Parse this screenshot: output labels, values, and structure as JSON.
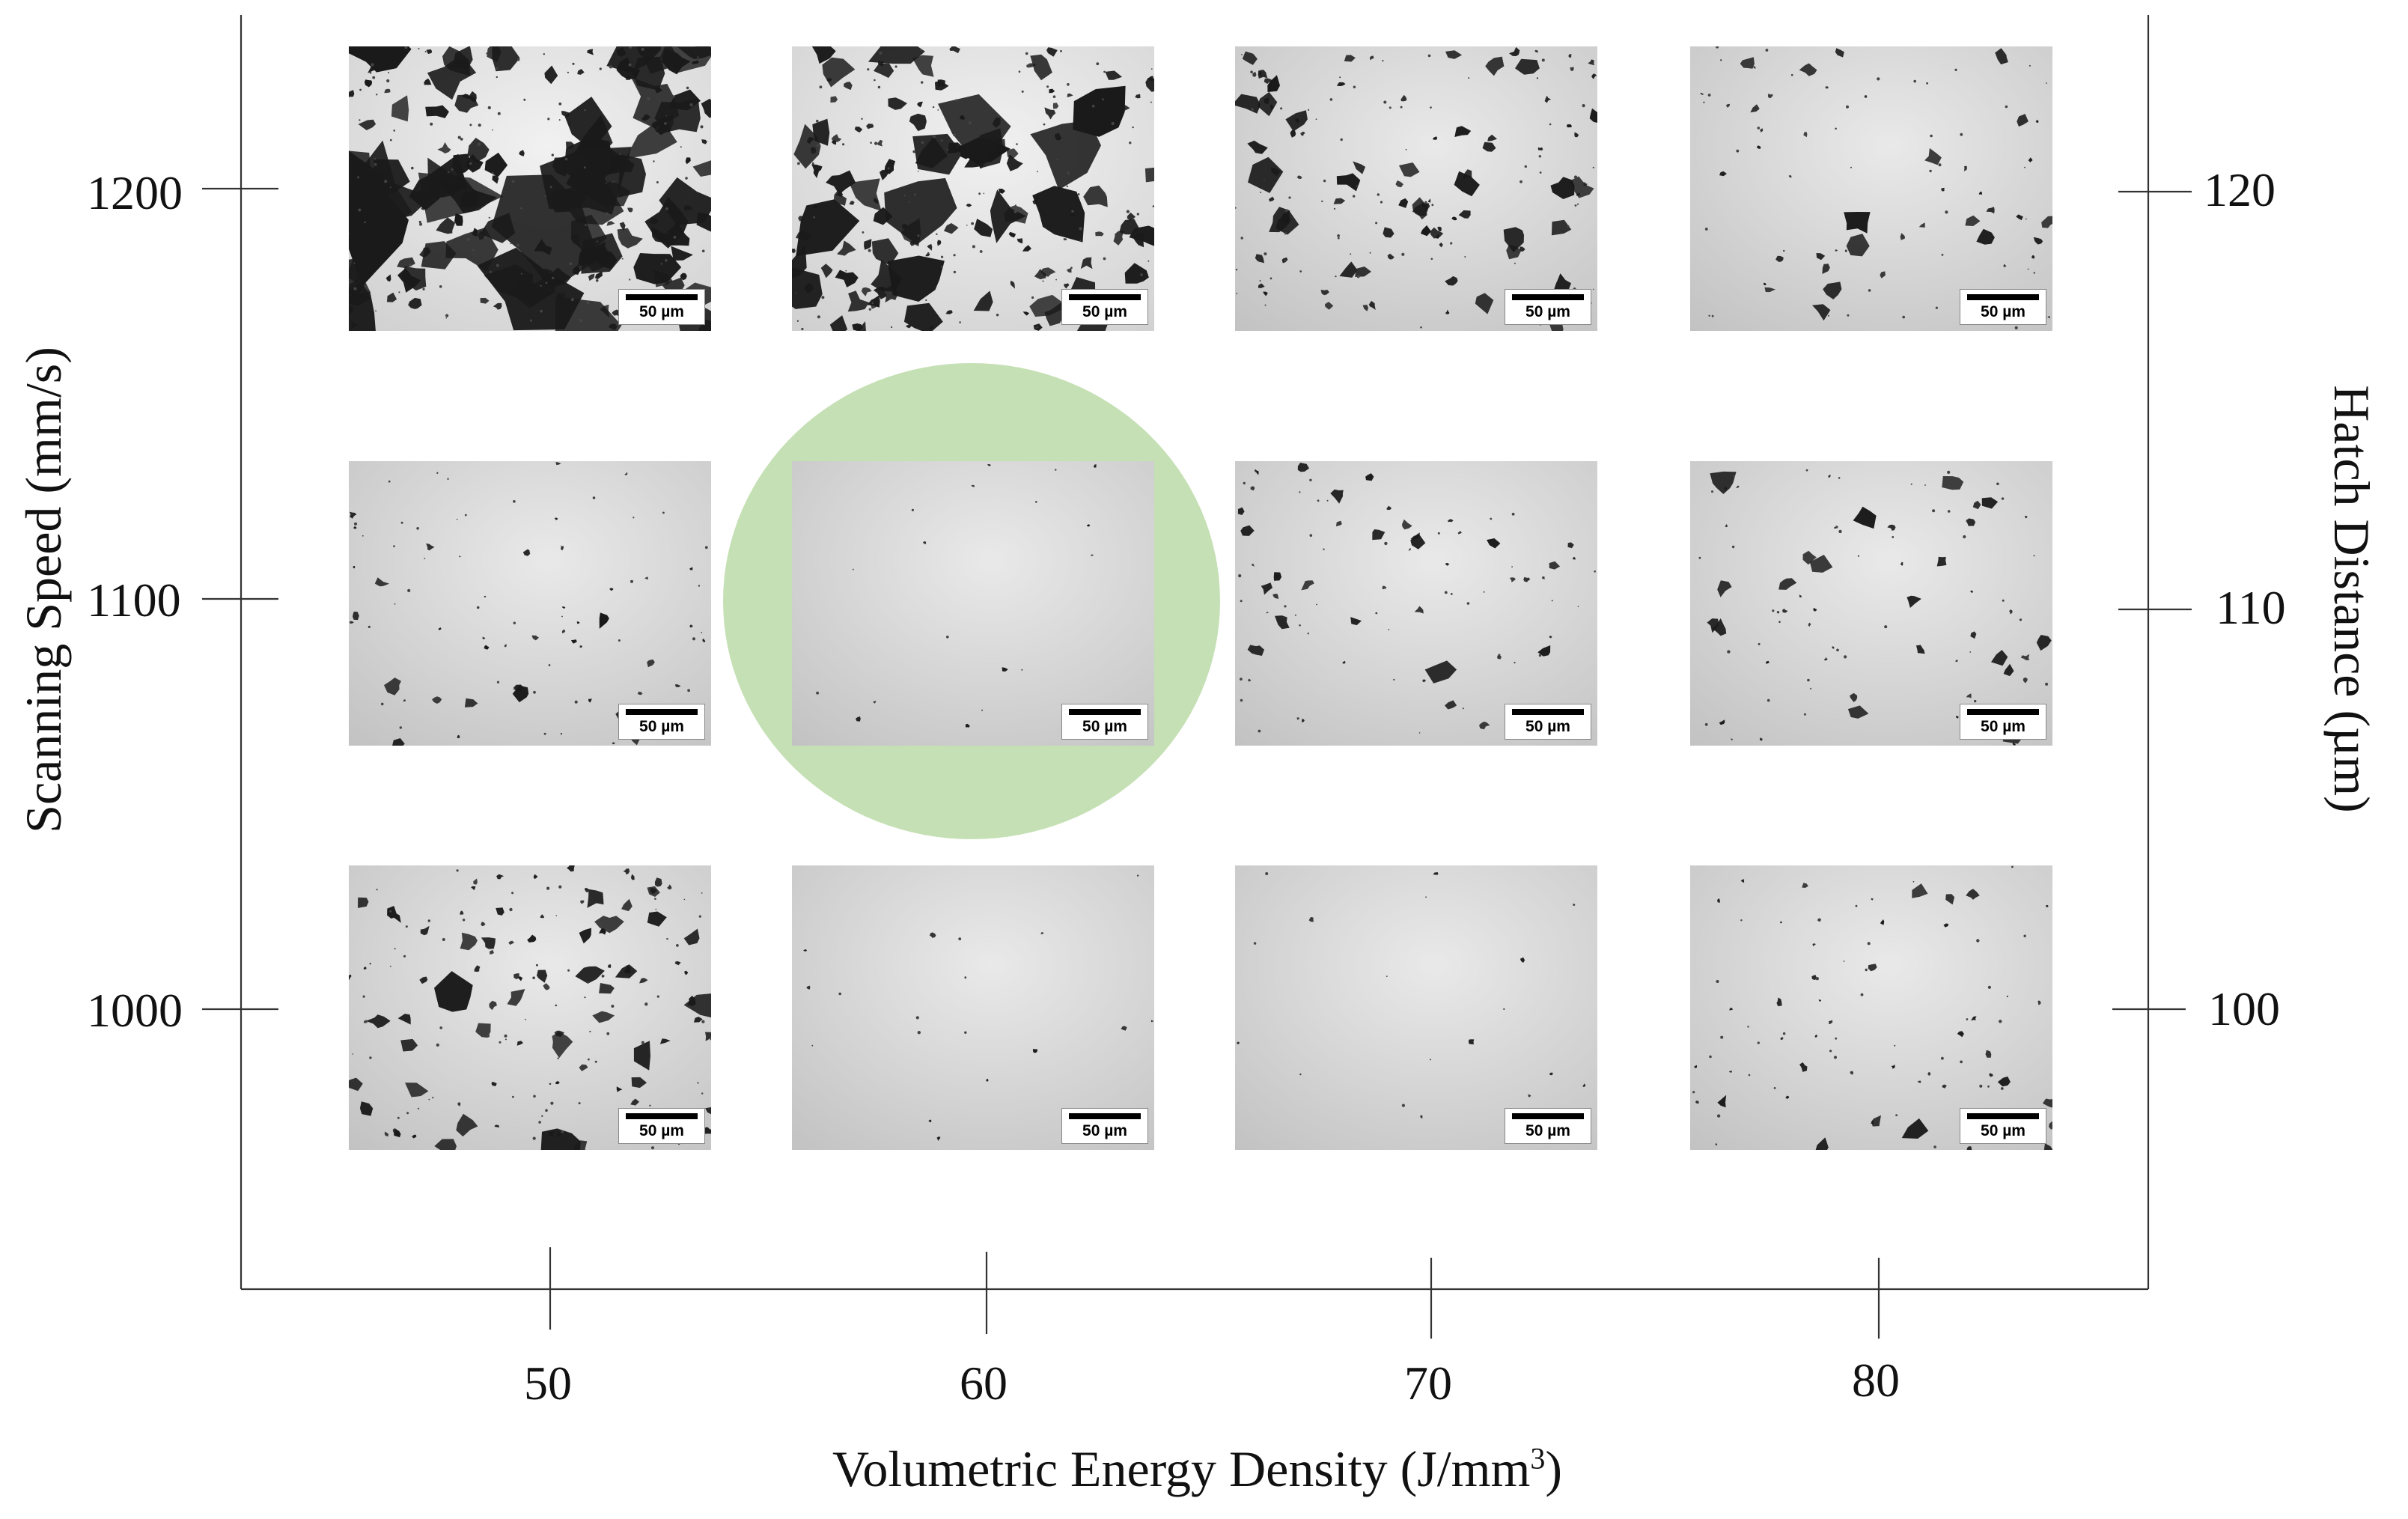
{
  "axes": {
    "x_title": "Volumetric Energy Density (J/mm",
    "x_title_sup": "3",
    "x_title_end": ")",
    "y_left_title": "Scanning Speed (mm/s)",
    "y_right_title": "Hatch Distance (µm)",
    "x_ticks": [
      "50",
      "60",
      "70",
      "80"
    ],
    "y_left_ticks": [
      "1200",
      "1100",
      "1000"
    ],
    "y_right_ticks": [
      "120",
      "110",
      "100"
    ]
  },
  "highlight_color": "#c5e0b4",
  "scale_bar_label": "50 µm",
  "micrographs": [
    {
      "row": "1200",
      "col": "50",
      "porosity": "very high"
    },
    {
      "row": "1200",
      "col": "60",
      "porosity": "high"
    },
    {
      "row": "1200",
      "col": "70",
      "porosity": "moderate"
    },
    {
      "row": "1200",
      "col": "80",
      "porosity": "low"
    },
    {
      "row": "1100",
      "col": "50",
      "porosity": "low"
    },
    {
      "row": "1100",
      "col": "60",
      "porosity": "minimal",
      "highlighted": true
    },
    {
      "row": "1100",
      "col": "70",
      "porosity": "low"
    },
    {
      "row": "1100",
      "col": "80",
      "porosity": "low"
    },
    {
      "row": "1000",
      "col": "50",
      "porosity": "moderate"
    },
    {
      "row": "1000",
      "col": "60",
      "porosity": "minimal"
    },
    {
      "row": "1000",
      "col": "70",
      "porosity": "minimal"
    },
    {
      "row": "1000",
      "col": "80",
      "porosity": "low"
    }
  ]
}
